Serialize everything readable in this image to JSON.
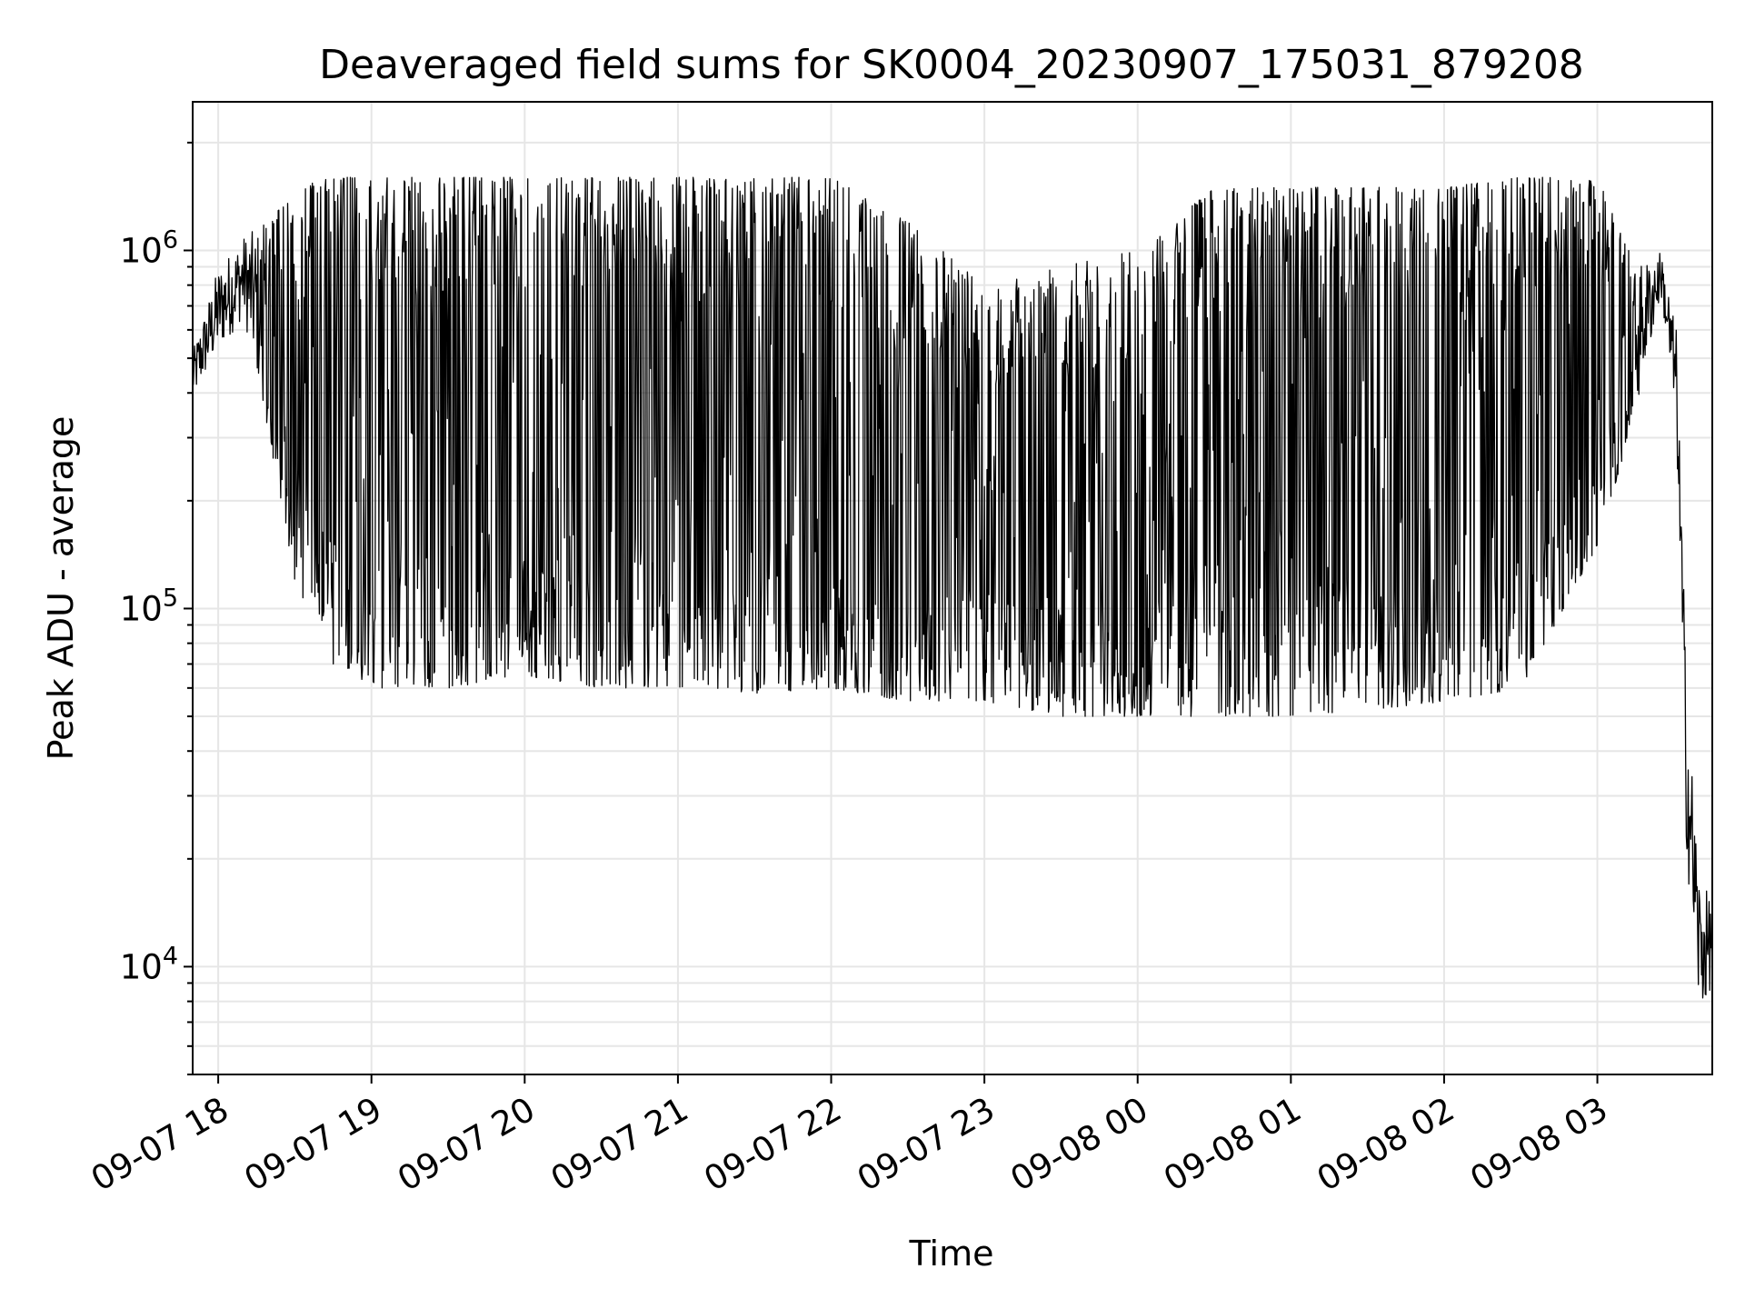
{
  "chart_data": {
    "type": "line",
    "title": "Deaveraged field sums for SK0004_20230907_175031_879208",
    "xlabel": "Time",
    "ylabel": "Peak ADU - average",
    "y_scale": "log",
    "ylim": [
      5000,
      2600000
    ],
    "xlim": [
      "2023-09-07 17:50",
      "2023-09-08 03:45"
    ],
    "grid": true,
    "line_color": "#000000",
    "x_ticks": [
      {
        "value": "2023-09-07 18:00",
        "label": "09-07 18"
      },
      {
        "value": "2023-09-07 19:00",
        "label": "09-07 19"
      },
      {
        "value": "2023-09-07 20:00",
        "label": "09-07 20"
      },
      {
        "value": "2023-09-07 21:00",
        "label": "09-07 21"
      },
      {
        "value": "2023-09-07 22:00",
        "label": "09-07 22"
      },
      {
        "value": "2023-09-07 23:00",
        "label": "09-07 23"
      },
      {
        "value": "2023-09-08 00:00",
        "label": "09-08 00"
      },
      {
        "value": "2023-09-08 01:00",
        "label": "09-08 01"
      },
      {
        "value": "2023-09-08 02:00",
        "label": "09-08 02"
      },
      {
        "value": "2023-09-08 03:00",
        "label": "09-08 03"
      }
    ],
    "y_ticks": [
      {
        "value": 10000,
        "base": "10",
        "exp": "4"
      },
      {
        "value": 100000,
        "base": "10",
        "exp": "5"
      },
      {
        "value": 1000000,
        "base": "10",
        "exp": "6"
      }
    ],
    "series": [
      {
        "name": "",
        "envelope": [
          {
            "t": "2023-09-07 17:50",
            "low": 380000,
            "high": 520000
          },
          {
            "t": "2023-09-07 18:00",
            "low": 520000,
            "high": 900000
          },
          {
            "t": "2023-09-07 18:10",
            "low": 650000,
            "high": 1100000
          },
          {
            "t": "2023-09-07 18:20",
            "low": 300000,
            "high": 1200000
          },
          {
            "t": "2023-09-07 18:30",
            "low": 120000,
            "high": 1500000
          },
          {
            "t": "2023-09-07 18:45",
            "low": 70000,
            "high": 1600000
          },
          {
            "t": "2023-09-07 19:00",
            "low": 60000,
            "high": 1600000
          },
          {
            "t": "2023-09-07 19:30",
            "low": 60000,
            "high": 1600000
          },
          {
            "t": "2023-09-07 20:00",
            "low": 65000,
            "high": 1600000
          },
          {
            "t": "2023-09-07 20:30",
            "low": 60000,
            "high": 1600000
          },
          {
            "t": "2023-09-07 21:00",
            "low": 60000,
            "high": 1600000
          },
          {
            "t": "2023-09-07 21:30",
            "low": 58000,
            "high": 1600000
          },
          {
            "t": "2023-09-07 22:00",
            "low": 60000,
            "high": 1600000
          },
          {
            "t": "2023-09-07 22:30",
            "low": 55000,
            "high": 1200000
          },
          {
            "t": "2023-09-07 23:00",
            "low": 55000,
            "high": 800000
          },
          {
            "t": "2023-09-07 23:30",
            "low": 50000,
            "high": 900000
          },
          {
            "t": "2023-09-08 00:00",
            "low": 50000,
            "high": 1000000
          },
          {
            "t": "2023-09-08 00:30",
            "low": 50000,
            "high": 1500000
          },
          {
            "t": "2023-09-08 01:00",
            "low": 50000,
            "high": 1500000
          },
          {
            "t": "2023-09-08 01:30",
            "low": 52000,
            "high": 1500000
          },
          {
            "t": "2023-09-08 02:00",
            "low": 55000,
            "high": 1500000
          },
          {
            "t": "2023-09-08 02:30",
            "low": 60000,
            "high": 1600000
          },
          {
            "t": "2023-09-08 03:00",
            "low": 150000,
            "high": 1600000
          },
          {
            "t": "2023-09-08 03:15",
            "low": 350000,
            "high": 900000
          },
          {
            "t": "2023-09-08 03:25",
            "low": 750000,
            "high": 1000000
          },
          {
            "t": "2023-09-08 03:31",
            "low": 300000,
            "high": 600000
          },
          {
            "t": "2023-09-08 03:35",
            "low": 20000,
            "high": 60000
          },
          {
            "t": "2023-09-08 03:40",
            "low": 7000,
            "high": 18000
          },
          {
            "t": "2023-09-08 03:45",
            "low": 9000,
            "high": 15000
          }
        ],
        "approx_points": 2400
      }
    ]
  }
}
